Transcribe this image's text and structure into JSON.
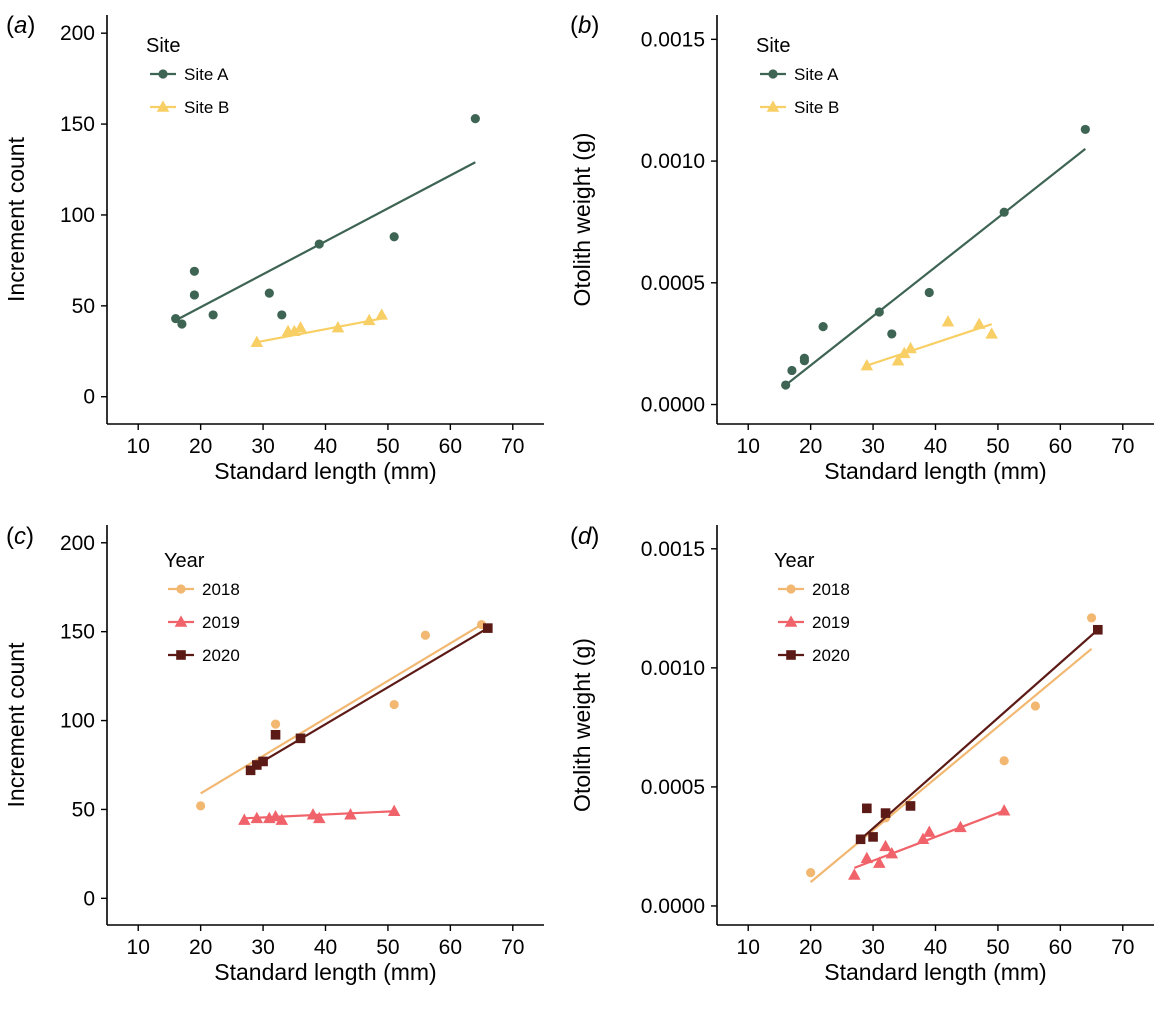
{
  "chart_data": [
    {
      "id": "a",
      "panel_label": "a",
      "type": "scatter",
      "xlabel": "Standard length (mm)",
      "ylabel": "Increment count",
      "xlim": [
        5,
        75
      ],
      "ylim": [
        -15,
        210
      ],
      "xticks": [
        10,
        20,
        30,
        40,
        50,
        60,
        70
      ],
      "xtick_labels": [
        "10",
        "20",
        "30",
        "40",
        "50",
        "60",
        "70"
      ],
      "yticks": [
        0,
        50,
        100,
        150,
        200
      ],
      "ytick_labels": [
        "0",
        "50",
        "100",
        "150",
        "200"
      ],
      "legend": {
        "title": "Site",
        "placement": "top-left"
      },
      "series": [
        {
          "name": "Site A",
          "color": "#3e6453",
          "marker": "circle",
          "points": [
            [
              16,
              43
            ],
            [
              17,
              40
            ],
            [
              19,
              69
            ],
            [
              19,
              56
            ],
            [
              22,
              45
            ],
            [
              31,
              57
            ],
            [
              33,
              45
            ],
            [
              39,
              84
            ],
            [
              51,
              88
            ],
            [
              64,
              153
            ]
          ],
          "fit": [
            [
              16,
              42
            ],
            [
              64,
              129
            ]
          ]
        },
        {
          "name": "Site B",
          "color": "#f8cf64",
          "marker": "triangle",
          "points": [
            [
              29,
              30
            ],
            [
              34,
              36
            ],
            [
              35,
              36
            ],
            [
              36,
              38
            ],
            [
              42,
              38
            ],
            [
              47,
              42
            ],
            [
              49,
              45
            ]
          ],
          "fit": [
            [
              29,
              30
            ],
            [
              49,
              43
            ]
          ]
        }
      ]
    },
    {
      "id": "b",
      "panel_label": "b",
      "type": "scatter",
      "xlabel": "Standard length (mm)",
      "ylabel": "Otolith weight (g)",
      "xlim": [
        5,
        75
      ],
      "ylim": [
        -8e-05,
        0.0016
      ],
      "xticks": [
        10,
        20,
        30,
        40,
        50,
        60,
        70
      ],
      "xtick_labels": [
        "10",
        "20",
        "30",
        "40",
        "50",
        "60",
        "70"
      ],
      "yticks": [
        0,
        0.0005,
        0.001,
        0.0015
      ],
      "ytick_labels": [
        "0.0000",
        "0.0005",
        "0.0010",
        "0.0015"
      ],
      "legend": {
        "title": "Site",
        "placement": "top-left"
      },
      "series": [
        {
          "name": "Site A",
          "color": "#3e6453",
          "marker": "circle",
          "points": [
            [
              16,
              8e-05
            ],
            [
              17,
              0.00014
            ],
            [
              19,
              0.00018
            ],
            [
              19,
              0.00019
            ],
            [
              22,
              0.00032
            ],
            [
              31,
              0.00038
            ],
            [
              33,
              0.00029
            ],
            [
              39,
              0.00046
            ],
            [
              51,
              0.00079
            ],
            [
              64,
              0.00113
            ]
          ],
          "fit": [
            [
              16,
              8e-05
            ],
            [
              64,
              0.00105
            ]
          ]
        },
        {
          "name": "Site B",
          "color": "#f8cf64",
          "marker": "triangle",
          "points": [
            [
              29,
              0.00016
            ],
            [
              34,
              0.00018
            ],
            [
              35,
              0.00021
            ],
            [
              36,
              0.00023
            ],
            [
              42,
              0.00034
            ],
            [
              47,
              0.00033
            ],
            [
              49,
              0.00029
            ]
          ],
          "fit": [
            [
              29,
              0.00016
            ],
            [
              49,
              0.00033
            ]
          ]
        }
      ]
    },
    {
      "id": "c",
      "panel_label": "c",
      "type": "scatter",
      "xlabel": "Standard length (mm)",
      "ylabel": "Increment count",
      "xlim": [
        5,
        75
      ],
      "ylim": [
        -15,
        210
      ],
      "xticks": [
        10,
        20,
        30,
        40,
        50,
        60,
        70
      ],
      "xtick_labels": [
        "10",
        "20",
        "30",
        "40",
        "50",
        "60",
        "70"
      ],
      "yticks": [
        0,
        50,
        100,
        150,
        200
      ],
      "ytick_labels": [
        "0",
        "50",
        "100",
        "150",
        "200"
      ],
      "legend": {
        "title": "Year",
        "placement": "top-left"
      },
      "series": [
        {
          "name": "2018",
          "color": "#f2b872",
          "marker": "circle",
          "points": [
            [
              20,
              52
            ],
            [
              32,
              98
            ],
            [
              51,
              109
            ],
            [
              56,
              148
            ],
            [
              65,
              154
            ]
          ],
          "fit": [
            [
              20,
              59
            ],
            [
              65,
              154
            ]
          ]
        },
        {
          "name": "2019",
          "color": "#f0636a",
          "marker": "triangle",
          "points": [
            [
              27,
              44
            ],
            [
              29,
              45
            ],
            [
              31,
              45
            ],
            [
              32,
              46
            ],
            [
              33,
              44
            ],
            [
              38,
              47
            ],
            [
              39,
              45
            ],
            [
              44,
              47
            ],
            [
              51,
              49
            ]
          ],
          "fit": [
            [
              27,
              45
            ],
            [
              51,
              49
            ]
          ]
        },
        {
          "name": "2020",
          "color": "#5c1a16",
          "marker": "square",
          "points": [
            [
              28,
              72
            ],
            [
              29,
              75
            ],
            [
              30,
              77
            ],
            [
              32,
              92
            ],
            [
              36,
              90
            ],
            [
              66,
              152
            ]
          ],
          "fit": [
            [
              28,
              73
            ],
            [
              66,
              152
            ]
          ]
        }
      ]
    },
    {
      "id": "d",
      "panel_label": "d",
      "type": "scatter",
      "xlabel": "Standard length (mm)",
      "ylabel": "Otolith weight (g)",
      "xlim": [
        5,
        75
      ],
      "ylim": [
        -8e-05,
        0.0016
      ],
      "xticks": [
        10,
        20,
        30,
        40,
        50,
        60,
        70
      ],
      "xtick_labels": [
        "10",
        "20",
        "30",
        "40",
        "50",
        "60",
        "70"
      ],
      "yticks": [
        0,
        0.0005,
        0.001,
        0.0015
      ],
      "ytick_labels": [
        "0.0000",
        "0.0005",
        "0.0010",
        "0.0015"
      ],
      "legend": {
        "title": "Year",
        "placement": "top-left"
      },
      "series": [
        {
          "name": "2018",
          "color": "#f2b872",
          "marker": "circle",
          "points": [
            [
              20,
              0.00014
            ],
            [
              32,
              0.00037
            ],
            [
              51,
              0.00061
            ],
            [
              56,
              0.00084
            ],
            [
              65,
              0.00121
            ]
          ],
          "fit": [
            [
              20,
              0.0001
            ],
            [
              65,
              0.00108
            ]
          ]
        },
        {
          "name": "2019",
          "color": "#f0636a",
          "marker": "triangle",
          "points": [
            [
              27,
              0.00013
            ],
            [
              29,
              0.0002
            ],
            [
              31,
              0.00018
            ],
            [
              32,
              0.00025
            ],
            [
              33,
              0.00022
            ],
            [
              38,
              0.00028
            ],
            [
              39,
              0.00031
            ],
            [
              44,
              0.00033
            ],
            [
              51,
              0.0004
            ]
          ],
          "fit": [
            [
              27,
              0.00016
            ],
            [
              51,
              0.0004
            ]
          ]
        },
        {
          "name": "2020",
          "color": "#5c1a16",
          "marker": "square",
          "points": [
            [
              28,
              0.00028
            ],
            [
              29,
              0.00041
            ],
            [
              30,
              0.00029
            ],
            [
              32,
              0.00039
            ],
            [
              36,
              0.00042
            ],
            [
              66,
              0.00116
            ]
          ],
          "fit": [
            [
              28,
              0.00028
            ],
            [
              66,
              0.00116
            ]
          ]
        }
      ]
    }
  ]
}
